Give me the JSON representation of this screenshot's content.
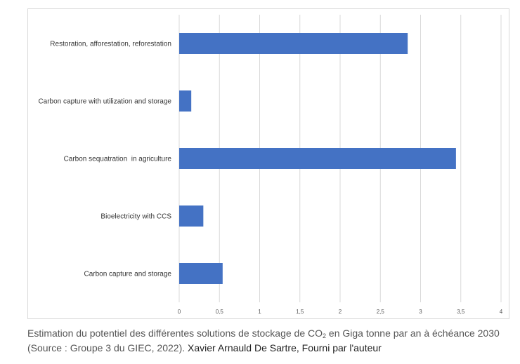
{
  "chart_data": {
    "type": "bar",
    "orientation": "horizontal",
    "categories": [
      "Restoration, afforestation, reforestation",
      "Carbon capture with utilization and storage",
      "Carbon sequatration  in agriculture",
      "Bioelectricity with CCS",
      "Carbon capture and storage"
    ],
    "values": [
      2.84,
      0.15,
      3.44,
      0.3,
      0.54
    ],
    "xlim": [
      0,
      4
    ],
    "xticks": [
      "0",
      "0,5",
      "1",
      "1,5",
      "2",
      "2,5",
      "3",
      "3,5",
      "4"
    ],
    "grid": "vertical",
    "bar_color": "#4472c4",
    "legend": "none"
  },
  "caption": {
    "text_before_sub": "Estimation du potentiel des différentes solutions de stockage de CO",
    "sub": "2",
    "text_after_sub": " en Giga tonne par an à échéance 2030 (Source : Groupe 3 du GIEC, 2022).",
    "credit": "Xavier Arnauld De Sartre, Fourni par l'auteur"
  }
}
